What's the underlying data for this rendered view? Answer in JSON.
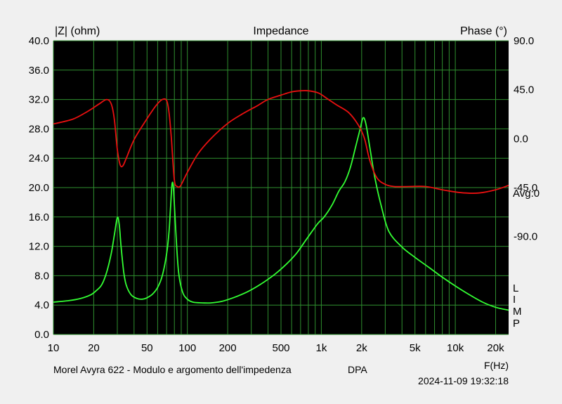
{
  "chart_data": {
    "type": "line",
    "title": "Impedance",
    "y_left_label": "|Z| (ohm)",
    "y_right_label": "Phase (°)",
    "x_label": "F(Hz)",
    "x_scale": "log",
    "xlim": [
      10,
      25000
    ],
    "ylim_left": [
      0,
      40
    ],
    "ylim_right": [
      -180,
      90
    ],
    "x_ticks": [
      {
        "value": 10,
        "label": "10"
      },
      {
        "value": 20,
        "label": "20"
      },
      {
        "value": 50,
        "label": "50"
      },
      {
        "value": 100,
        "label": "100"
      },
      {
        "value": 200,
        "label": "200"
      },
      {
        "value": 500,
        "label": "500"
      },
      {
        "value": 1000,
        "label": "1k"
      },
      {
        "value": 2000,
        "label": "2k"
      },
      {
        "value": 5000,
        "label": "5k"
      },
      {
        "value": 10000,
        "label": "10k"
      },
      {
        "value": 20000,
        "label": "20k"
      }
    ],
    "y_left_ticks": [
      {
        "value": 0,
        "label": "0.0"
      },
      {
        "value": 4,
        "label": "4.0"
      },
      {
        "value": 8,
        "label": "8.0"
      },
      {
        "value": 12,
        "label": "12.0"
      },
      {
        "value": 16,
        "label": "16.0"
      },
      {
        "value": 20,
        "label": "20.0"
      },
      {
        "value": 24,
        "label": "24.0"
      },
      {
        "value": 28,
        "label": "28.0"
      },
      {
        "value": 32,
        "label": "32.0"
      },
      {
        "value": 36,
        "label": "36.0"
      },
      {
        "value": 40,
        "label": "40.0"
      }
    ],
    "y_right_ticks": [
      {
        "value": 90,
        "label": "90.0"
      },
      {
        "value": 45,
        "label": "45.0"
      },
      {
        "value": 0,
        "label": "0.0"
      },
      {
        "value": -45,
        "label": "-45.0"
      },
      {
        "value": -90,
        "label": "-90.0"
      }
    ],
    "avg_label": "Avg:0",
    "limp_letters": [
      "L",
      "I",
      "M",
      "P"
    ],
    "grid": true,
    "colors": {
      "background": "#000000",
      "grid": "#2f8f2f",
      "impedance": "#33ff33",
      "phase": "#e81010",
      "frame": "#f0f0f0"
    },
    "series": [
      {
        "axis": "left",
        "color": "#33ff33",
        "x": [
          10,
          13,
          16,
          19,
          21,
          23,
          25,
          27,
          28.5,
          30,
          31,
          32,
          33.5,
          35,
          38,
          42,
          46,
          50,
          55,
          60,
          65,
          70,
          73,
          75,
          77,
          79,
          82,
          86,
          92,
          100,
          110,
          130,
          150,
          180,
          220,
          280,
          350,
          450,
          550,
          650,
          750,
          850,
          950,
          1050,
          1200,
          1350,
          1500,
          1650,
          1800,
          1950,
          2050,
          2150,
          2300,
          2500,
          2800,
          3200,
          4000,
          5000,
          6500,
          8000,
          10000,
          12500,
          16000,
          20000,
          25000
        ],
        "y": [
          4.4,
          4.6,
          4.9,
          5.4,
          6.0,
          6.8,
          8.5,
          11.0,
          13.5,
          15.9,
          15.0,
          12.0,
          8.5,
          6.7,
          5.4,
          4.9,
          4.8,
          5.0,
          5.5,
          6.4,
          8.0,
          11.0,
          14.0,
          17.5,
          20.6,
          19.5,
          14.0,
          8.5,
          5.8,
          4.8,
          4.4,
          4.3,
          4.3,
          4.5,
          5.0,
          5.8,
          6.8,
          8.2,
          9.6,
          11.0,
          12.6,
          14.0,
          15.2,
          16.0,
          17.6,
          19.5,
          20.8,
          22.8,
          25.5,
          28.0,
          29.5,
          28.7,
          25.5,
          21.5,
          17.5,
          14.0,
          11.9,
          10.5,
          9.0,
          7.8,
          6.6,
          5.5,
          4.4,
          3.7,
          3.3
        ]
      },
      {
        "axis": "right",
        "color": "#e81010",
        "x": [
          10,
          14,
          18,
          22,
          25,
          27,
          28.5,
          30,
          31.5,
          33,
          35,
          40,
          48,
          58,
          65,
          70,
          73,
          76,
          80,
          84,
          88,
          92,
          100,
          120,
          150,
          200,
          260,
          330,
          400,
          500,
          600,
          700,
          800,
          950,
          1100,
          1300,
          1600,
          1900,
          2100,
          2300,
          2600,
          3000,
          3500,
          4500,
          6000,
          8000,
          10000,
          12000,
          15000,
          20000,
          25000
        ],
        "y": [
          13.5,
          18,
          25,
          32,
          36,
          32,
          18,
          -10,
          -24,
          -25,
          -18,
          -1,
          15,
          30,
          36,
          35,
          24,
          0,
          -38,
          -44,
          -44,
          -40,
          -31,
          -14,
          0,
          14,
          23,
          30,
          36,
          40,
          43,
          44,
          44,
          42,
          37,
          31,
          24,
          12,
          0,
          -20,
          -36,
          -42,
          -44,
          -44,
          -44,
          -47,
          -49,
          -50,
          -50,
          -47,
          -43
        ]
      }
    ],
    "footer": {
      "description": "Morel Avyra 622 - Modulo e argomento dell'impedenza",
      "tag": "DPA",
      "timestamp": "2024-11-09 19:32:18"
    }
  }
}
